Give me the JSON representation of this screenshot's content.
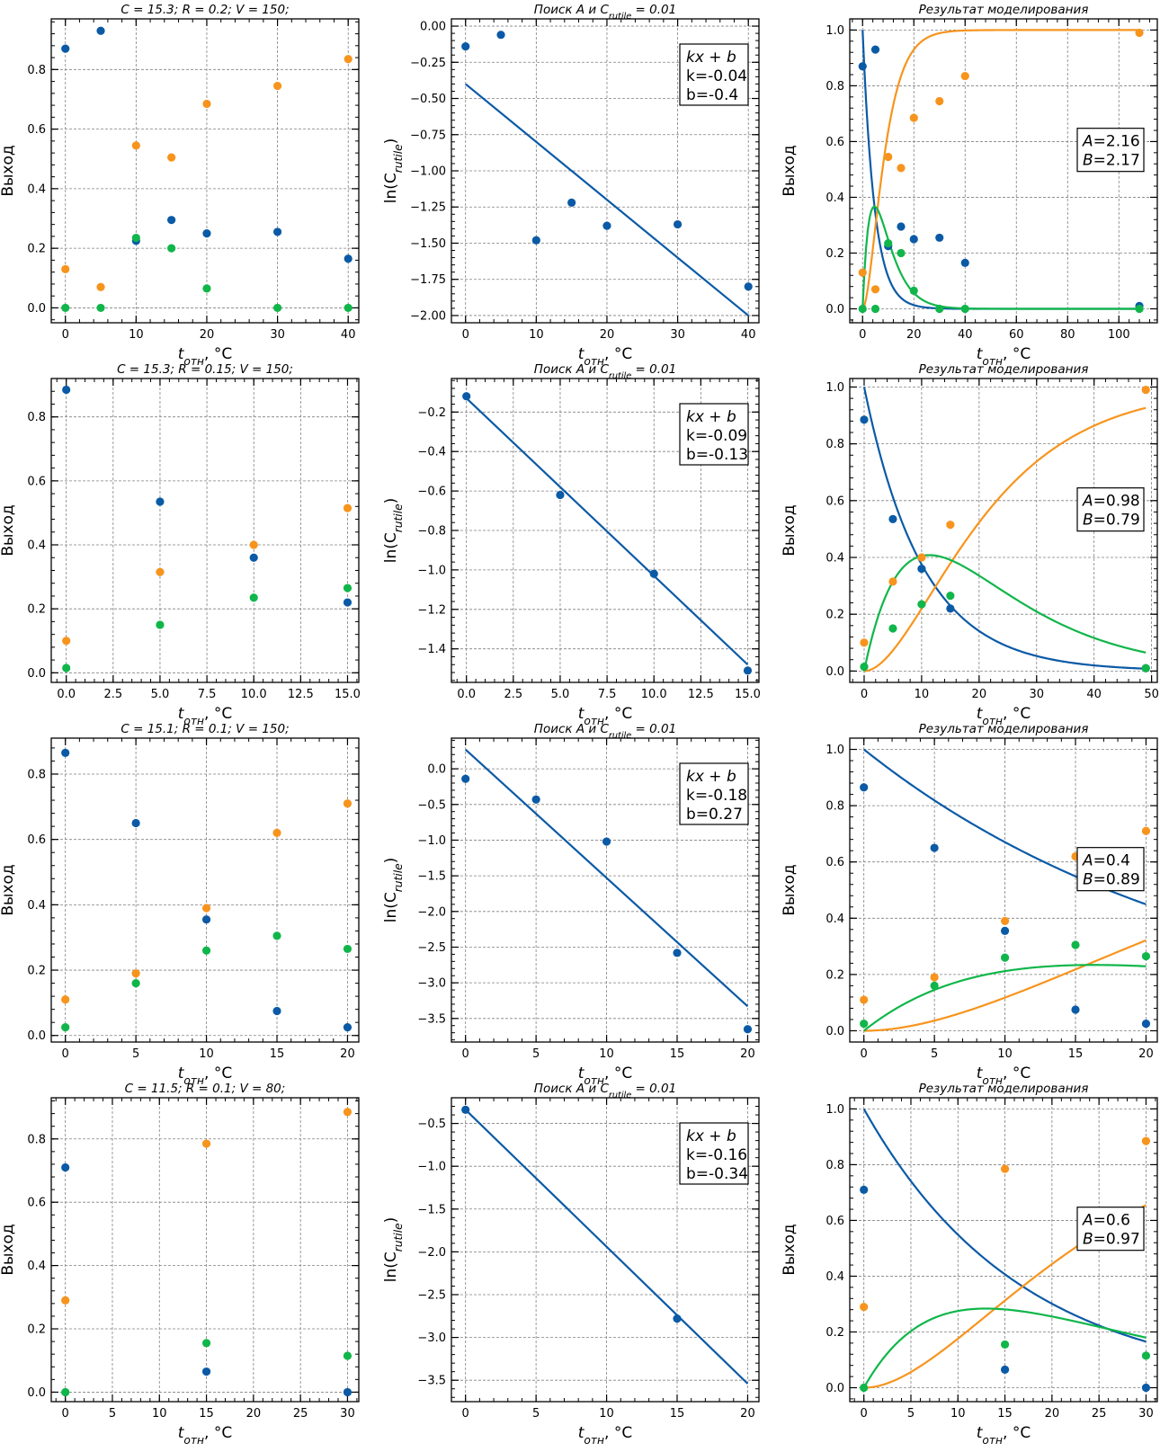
{
  "colors": {
    "blue": "#0b5aa6",
    "orange": "#f7941d",
    "green": "#10b64a",
    "grid": "#808080"
  },
  "labels": {
    "xlabel": "t_отн, °C",
    "ylabel_yield": "Выход",
    "ylabel_ln": "ln(C_rutile)"
  },
  "chart_data": [
    {
      "type": "scatter",
      "row": 0,
      "col": 0,
      "title": "C = 15.3;  R = 0.2;  V = 150;",
      "xlabel": "t_отн, °C",
      "ylabel": "Выход",
      "xlim": [
        -2,
        41.5
      ],
      "ylim": [
        -0.05,
        0.97
      ],
      "xticks": [
        0,
        10,
        20,
        30,
        40
      ],
      "yticks": [
        0.0,
        0.2,
        0.4,
        0.6,
        0.8
      ],
      "yprec": 1,
      "x": [
        0,
        5,
        10,
        15,
        20,
        30,
        40
      ],
      "series": [
        {
          "color": "blue",
          "values": [
            0.87,
            0.93,
            0.225,
            0.295,
            0.25,
            0.255,
            0.165
          ]
        },
        {
          "color": "orange",
          "values": [
            0.13,
            0.07,
            0.545,
            0.505,
            0.685,
            0.745,
            0.835
          ]
        },
        {
          "color": "green",
          "values": [
            0.0,
            0.0,
            0.235,
            0.2,
            0.065,
            0.0,
            0.0
          ]
        }
      ]
    },
    {
      "type": "line",
      "row": 0,
      "col": 1,
      "title": "Поиск A и C_rutile = 0.01",
      "xlabel": "t_отн, °C",
      "ylabel": "ln(C_rutile)",
      "xlim": [
        -2,
        41.5
      ],
      "ylim": [
        -2.05,
        0.05
      ],
      "xticks": [
        0,
        10,
        20,
        30,
        40
      ],
      "yticks": [
        0.0,
        -0.25,
        -0.5,
        -0.75,
        -1.0,
        -1.25,
        -1.5,
        -1.75,
        -2.0
      ],
      "yprec": 2,
      "points": {
        "x": [
          0,
          5,
          10,
          15,
          20,
          30,
          40
        ],
        "y": [
          -0.14,
          -0.06,
          -1.48,
          -1.22,
          -1.38,
          -1.37,
          -1.8
        ]
      },
      "fit": {
        "k": -0.04,
        "b": -0.4,
        "x": [
          0,
          40
        ]
      },
      "box": {
        "formula": "kx + b",
        "k": "k=-0.04",
        "b": "b=-0.4"
      }
    },
    {
      "type": "line",
      "row": 0,
      "col": 2,
      "title": "Результат моделирования",
      "xlabel": "t_отн, °C",
      "ylabel": "Выход",
      "xlim": [
        -5,
        115
      ],
      "ylim": [
        -0.05,
        1.04
      ],
      "xticks": [
        0,
        20,
        40,
        60,
        80,
        100
      ],
      "yticks": [
        0.0,
        0.2,
        0.4,
        0.6,
        0.8,
        1.0
      ],
      "yprec": 1,
      "x": [
        0,
        5,
        10,
        15,
        20,
        30,
        40,
        108
      ],
      "series": [
        {
          "color": "blue",
          "values": [
            0.87,
            0.93,
            0.225,
            0.295,
            0.25,
            0.255,
            0.165,
            0.01
          ]
        },
        {
          "color": "orange",
          "values": [
            0.13,
            0.07,
            0.545,
            0.505,
            0.685,
            0.745,
            0.835,
            0.99
          ]
        },
        {
          "color": "green",
          "values": [
            0.0,
            0.0,
            0.235,
            0.2,
            0.065,
            0.0,
            0.0,
            0.0
          ]
        }
      ],
      "model": {
        "A": 2.16,
        "B": 2.17,
        "tmax": 108
      },
      "box": {
        "A": "=2.16",
        "B": "=2.17"
      }
    },
    {
      "type": "scatter",
      "row": 1,
      "col": 0,
      "title": "C = 15.3;  R = 0.15;  V = 150;",
      "xlabel": "t_отн, °C",
      "ylabel": "Выход",
      "xlim": [
        -0.8,
        15.6
      ],
      "ylim": [
        -0.03,
        0.92
      ],
      "xticks": [
        0.0,
        2.5,
        5.0,
        7.5,
        10.0,
        12.5,
        15.0
      ],
      "xprec": 1,
      "yticks": [
        0.0,
        0.2,
        0.4,
        0.6,
        0.8
      ],
      "yprec": 1,
      "x": [
        0,
        5,
        10,
        15
      ],
      "series": [
        {
          "color": "blue",
          "values": [
            0.885,
            0.535,
            0.36,
            0.22
          ]
        },
        {
          "color": "orange",
          "values": [
            0.1,
            0.315,
            0.4,
            0.515
          ]
        },
        {
          "color": "green",
          "values": [
            0.015,
            0.15,
            0.235,
            0.265
          ]
        }
      ]
    },
    {
      "type": "line",
      "row": 1,
      "col": 1,
      "title": "Поиск A и C_rutile = 0.01",
      "xlabel": "t_отн, °C",
      "ylabel": "ln(C_rutile)",
      "xlim": [
        -0.8,
        15.6
      ],
      "ylim": [
        -1.57,
        -0.03
      ],
      "xticks": [
        0.0,
        2.5,
        5.0,
        7.5,
        10.0,
        12.5,
        15.0
      ],
      "xprec": 1,
      "yticks": [
        -0.2,
        -0.4,
        -0.6,
        -0.8,
        -1.0,
        -1.2,
        -1.4
      ],
      "yprec": 1,
      "points": {
        "x": [
          0,
          5,
          10,
          15
        ],
        "y": [
          -0.12,
          -0.62,
          -1.02,
          -1.51
        ]
      },
      "fit": {
        "k": -0.09,
        "b": -0.13,
        "x": [
          0,
          15
        ]
      },
      "box": {
        "formula": "kx + b",
        "k": "k=-0.09",
        "b": "b=-0.13"
      }
    },
    {
      "type": "line",
      "row": 1,
      "col": 2,
      "title": "Результат моделирования",
      "xlabel": "t_отн, °C",
      "ylabel": "Выход",
      "xlim": [
        -2.5,
        51
      ],
      "ylim": [
        -0.04,
        1.03
      ],
      "xticks": [
        0,
        10,
        20,
        30,
        40,
        50
      ],
      "yticks": [
        0.0,
        0.2,
        0.4,
        0.6,
        0.8,
        1.0
      ],
      "yprec": 1,
      "x": [
        0,
        5,
        10,
        15,
        49
      ],
      "series": [
        {
          "color": "blue",
          "values": [
            0.885,
            0.535,
            0.36,
            0.22,
            0.01
          ]
        },
        {
          "color": "orange",
          "values": [
            0.1,
            0.315,
            0.4,
            0.515,
            0.99
          ]
        },
        {
          "color": "green",
          "values": [
            0.015,
            0.15,
            0.235,
            0.265,
            0.01
          ]
        }
      ],
      "model": {
        "A": 0.98,
        "B": 0.79,
        "tmax": 49
      },
      "box": {
        "A": "=0.98",
        "B": "=0.79"
      }
    },
    {
      "type": "scatter",
      "row": 2,
      "col": 0,
      "title": "C = 15.1;  R = 0.1;  V = 150;",
      "xlabel": "t_отн, °C",
      "ylabel": "Выход",
      "xlim": [
        -1,
        20.8
      ],
      "ylim": [
        -0.02,
        0.91
      ],
      "xticks": [
        0,
        5,
        10,
        15,
        20
      ],
      "yticks": [
        0.0,
        0.2,
        0.4,
        0.6,
        0.8
      ],
      "yprec": 1,
      "x": [
        0,
        5,
        10,
        15,
        20
      ],
      "series": [
        {
          "color": "blue",
          "values": [
            0.865,
            0.65,
            0.355,
            0.075,
            0.025
          ]
        },
        {
          "color": "orange",
          "values": [
            0.11,
            0.19,
            0.39,
            0.62,
            0.71
          ]
        },
        {
          "color": "green",
          "values": [
            0.025,
            0.16,
            0.26,
            0.305,
            0.265
          ]
        }
      ]
    },
    {
      "type": "line",
      "row": 2,
      "col": 1,
      "title": "Поиск A и C_rutile = 0.01",
      "xlabel": "t_отн, °C",
      "ylabel": "ln(C_rutile)",
      "xlim": [
        -1,
        20.8
      ],
      "ylim": [
        -3.83,
        0.43
      ],
      "xticks": [
        0,
        5,
        10,
        15,
        20
      ],
      "yticks": [
        0.0,
        -0.5,
        -1.0,
        -1.5,
        -2.0,
        -2.5,
        -3.0,
        -3.5
      ],
      "yprec": 1,
      "points": {
        "x": [
          0,
          5,
          10,
          15,
          20
        ],
        "y": [
          -0.14,
          -0.43,
          -1.02,
          -2.58,
          -3.65
        ]
      },
      "fit": {
        "k": -0.18,
        "b": 0.27,
        "x": [
          0,
          20
        ]
      },
      "box": {
        "formula": "kx + b",
        "k": "k=-0.18",
        "b": "b=0.27"
      }
    },
    {
      "type": "line",
      "row": 2,
      "col": 2,
      "title": "Результат моделирования",
      "xlabel": "t_отн, °C",
      "ylabel": "Выход",
      "xlim": [
        -1,
        20.8
      ],
      "ylim": [
        -0.04,
        1.04
      ],
      "xticks": [
        0,
        5,
        10,
        15,
        20
      ],
      "yticks": [
        0.0,
        0.2,
        0.4,
        0.6,
        0.8,
        1.0
      ],
      "yprec": 1,
      "x": [
        0,
        5,
        10,
        15,
        20
      ],
      "series": [
        {
          "color": "blue",
          "values": [
            0.865,
            0.65,
            0.355,
            0.075,
            0.025
          ]
        },
        {
          "color": "orange",
          "values": [
            0.11,
            0.19,
            0.39,
            0.62,
            0.71
          ]
        },
        {
          "color": "green",
          "values": [
            0.025,
            0.16,
            0.26,
            0.305,
            0.265
          ]
        }
      ],
      "model": {
        "A": 0.4,
        "B": 0.89,
        "tmax": 20
      },
      "box": {
        "A": "=0.4",
        "B": "=0.89"
      }
    },
    {
      "type": "scatter",
      "row": 3,
      "col": 0,
      "title": "C = 11.5;  R = 0.1;  V = 80;",
      "xlabel": "t_отн, °C",
      "ylabel": "Выход",
      "xlim": [
        -1.5,
        31.2
      ],
      "ylim": [
        -0.03,
        0.93
      ],
      "xticks": [
        0,
        5,
        10,
        15,
        20,
        25,
        30
      ],
      "yticks": [
        0.0,
        0.2,
        0.4,
        0.6,
        0.8
      ],
      "yprec": 1,
      "x": [
        0,
        15,
        30
      ],
      "series": [
        {
          "color": "blue",
          "values": [
            0.71,
            0.065,
            0.0
          ]
        },
        {
          "color": "orange",
          "values": [
            0.29,
            0.785,
            0.885
          ]
        },
        {
          "color": "green",
          "values": [
            0.0,
            0.155,
            0.115
          ]
        }
      ]
    },
    {
      "type": "line",
      "row": 3,
      "col": 1,
      "title": "Поиск A и C_rutile = 0.01",
      "xlabel": "t_отн, °C",
      "ylabel": "ln(C_rutile)",
      "xlim": [
        -1,
        20.8
      ],
      "ylim": [
        -3.75,
        -0.2
      ],
      "xticks": [
        0,
        5,
        10,
        15,
        20
      ],
      "yticks": [
        -0.5,
        -1.0,
        -1.5,
        -2.0,
        -2.5,
        -3.0,
        -3.5
      ],
      "yprec": 1,
      "points": {
        "x": [
          0,
          15
        ],
        "y": [
          -0.34,
          -2.78
        ]
      },
      "fit": {
        "k": -0.16,
        "b": -0.34,
        "x": [
          0,
          20
        ]
      },
      "box": {
        "formula": "kx + b",
        "k": "k=-0.16",
        "b": "b=-0.34"
      }
    },
    {
      "type": "line",
      "row": 3,
      "col": 2,
      "title": "Результат моделирования",
      "xlabel": "t_отн, °C",
      "ylabel": "Выход",
      "xlim": [
        -1.5,
        31.2
      ],
      "ylim": [
        -0.05,
        1.04
      ],
      "xticks": [
        0,
        5,
        10,
        15,
        20,
        25,
        30
      ],
      "yticks": [
        0.0,
        0.2,
        0.4,
        0.6,
        0.8,
        1.0
      ],
      "yprec": 1,
      "x": [
        0,
        15,
        30
      ],
      "series": [
        {
          "color": "blue",
          "values": [
            0.71,
            0.065,
            0.0
          ]
        },
        {
          "color": "orange",
          "values": [
            0.29,
            0.785,
            0.885
          ]
        },
        {
          "color": "green",
          "values": [
            0.0,
            0.155,
            0.115
          ]
        }
      ],
      "model": {
        "A": 0.6,
        "B": 0.97,
        "tmax": 30
      },
      "box": {
        "A": "=0.6",
        "B": "=0.97"
      }
    }
  ]
}
